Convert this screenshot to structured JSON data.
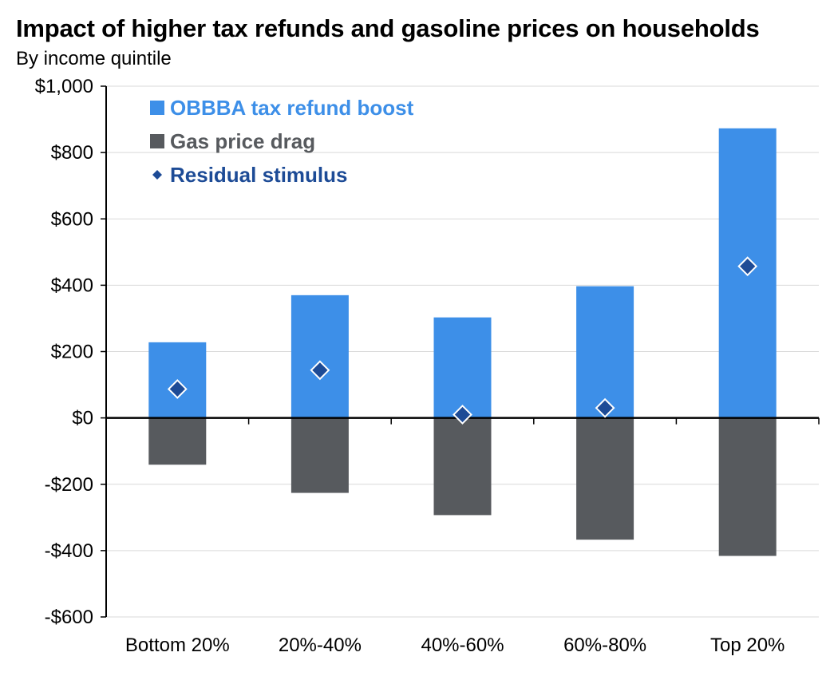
{
  "chart_data": {
    "type": "bar",
    "title": "Impact of higher tax refunds and gasoline prices on households",
    "subtitle": "By income quintile",
    "xlabel": "",
    "ylabel": "",
    "ylim": [
      -600,
      1000
    ],
    "yticks": [
      1000,
      800,
      600,
      400,
      200,
      0,
      -200,
      -400,
      -600
    ],
    "ytick_labels": [
      "$1,000",
      "$800",
      "$600",
      "$400",
      "$200",
      "$0",
      "-$200",
      "-$400",
      "-$600"
    ],
    "categories": [
      "Bottom 20%",
      "20%-40%",
      "40%-60%",
      "60%-80%",
      "Top 20%"
    ],
    "series": [
      {
        "name": "OBBBA tax refund boost",
        "kind": "bar",
        "color": "#3d8fe8",
        "values": [
          228,
          370,
          303,
          397,
          873
        ]
      },
      {
        "name": "Gas price drag",
        "kind": "bar",
        "color": "#575a5e",
        "values": [
          -141,
          -226,
          -293,
          -367,
          -416
        ]
      },
      {
        "name": "Residual stimulus",
        "kind": "marker",
        "color": "#1d4b96",
        "values": [
          87,
          144,
          10,
          30,
          457
        ]
      }
    ],
    "legend_position": "top-left",
    "grid": true
  }
}
